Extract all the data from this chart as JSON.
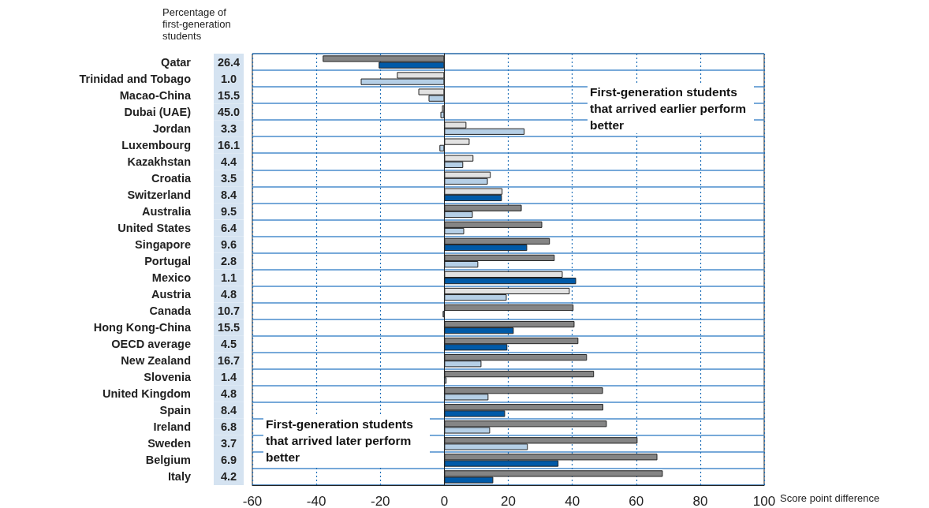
{
  "chart_data": {
    "type": "bar",
    "orientation": "horizontal",
    "xlabel": "Score point difference",
    "y2label": "Percentage of first-generation students",
    "categories": [
      "Qatar",
      "Trinidad and Tobago",
      "Macao-China",
      "Dubai (UAE)",
      "Jordan",
      "Luxembourg",
      "Kazakhstan",
      "Croatia",
      "Switzerland",
      "Australia",
      "United States",
      "Singapore",
      "Portugal",
      "Mexico",
      "Austria",
      "Canada",
      "Hong Kong-China",
      "OECD average",
      "New Zealand",
      "Slovenia",
      "United Kingdom",
      "Spain",
      "Ireland",
      "Sweden",
      "Belgium",
      "Italy"
    ],
    "y2_categories": [
      "26.4",
      "1.0",
      "15.5",
      "45.0",
      "3.3",
      "16.1",
      "4.4",
      "3.5",
      "8.4",
      "9.5",
      "6.4",
      "9.6",
      "2.8",
      "1.1",
      "4.8",
      "10.7",
      "15.5",
      "4.5",
      "16.7",
      "1.4",
      "4.8",
      "8.4",
      "6.8",
      "3.7",
      "6.9",
      "4.2"
    ],
    "series": [
      {
        "values": [
          -38,
          -14.8,
          -8.1,
          -0.7,
          6.9,
          7.9,
          9.1,
          14.5,
          18.2,
          24.2,
          30.6,
          33,
          34.5,
          37,
          39.2,
          40.4,
          40.7,
          41.9,
          44.6,
          46.8,
          49.6,
          49.7,
          50.8,
          60.4,
          66.6,
          68.3
        ],
        "colors": [
          "#858585",
          "#e2e2e2",
          "#e2e2e2",
          "#e2e2e2",
          "#e2e2e2",
          "#e2e2e2",
          "#e2e2e2",
          "#e2e2e2",
          "#e2e2e2",
          "#858585",
          "#858585",
          "#858585",
          "#858585",
          "#e2e2e2",
          "#e2e2e2",
          "#858585",
          "#858585",
          "#858585",
          "#858585",
          "#858585",
          "#858585",
          "#858585",
          "#858585",
          "#858585",
          "#858585",
          "#858585"
        ]
      },
      {
        "values": [
          -20.5,
          -26.1,
          -4.9,
          -1.2,
          25.1,
          -1.5,
          5.9,
          13.6,
          18,
          8.9,
          6.2,
          25.9,
          10.6,
          41.2,
          19.5,
          -0.5,
          21.7,
          19.7,
          11.6,
          0.7,
          13.8,
          19,
          14.3,
          26.1,
          35.7,
          15.3
        ],
        "colors": [
          "#005aa8",
          "#b5cfe6",
          "#b5cfe6",
          "#b5cfe6",
          "#b5cfe6",
          "#b5cfe6",
          "#b5cfe6",
          "#b5cfe6",
          "#005aa8",
          "#b5cfe6",
          "#b5cfe6",
          "#005aa8",
          "#b5cfe6",
          "#005aa8",
          "#b5cfe6",
          "#b5cfe6",
          "#005aa8",
          "#005aa8",
          "#b5cfe6",
          "#b5cfe6",
          "#b5cfe6",
          "#005aa8",
          "#b5cfe6",
          "#b5cfe6",
          "#005aa8",
          "#005aa8"
        ]
      }
    ],
    "xlim": [
      -60,
      100
    ],
    "xticks": [
      -60,
      -40,
      -20,
      0,
      20,
      40,
      60,
      80,
      100
    ],
    "grid": true,
    "annotations": [
      "First-generation students that arrived earlier perform better",
      "First-generation students that arrived later perform better"
    ]
  }
}
